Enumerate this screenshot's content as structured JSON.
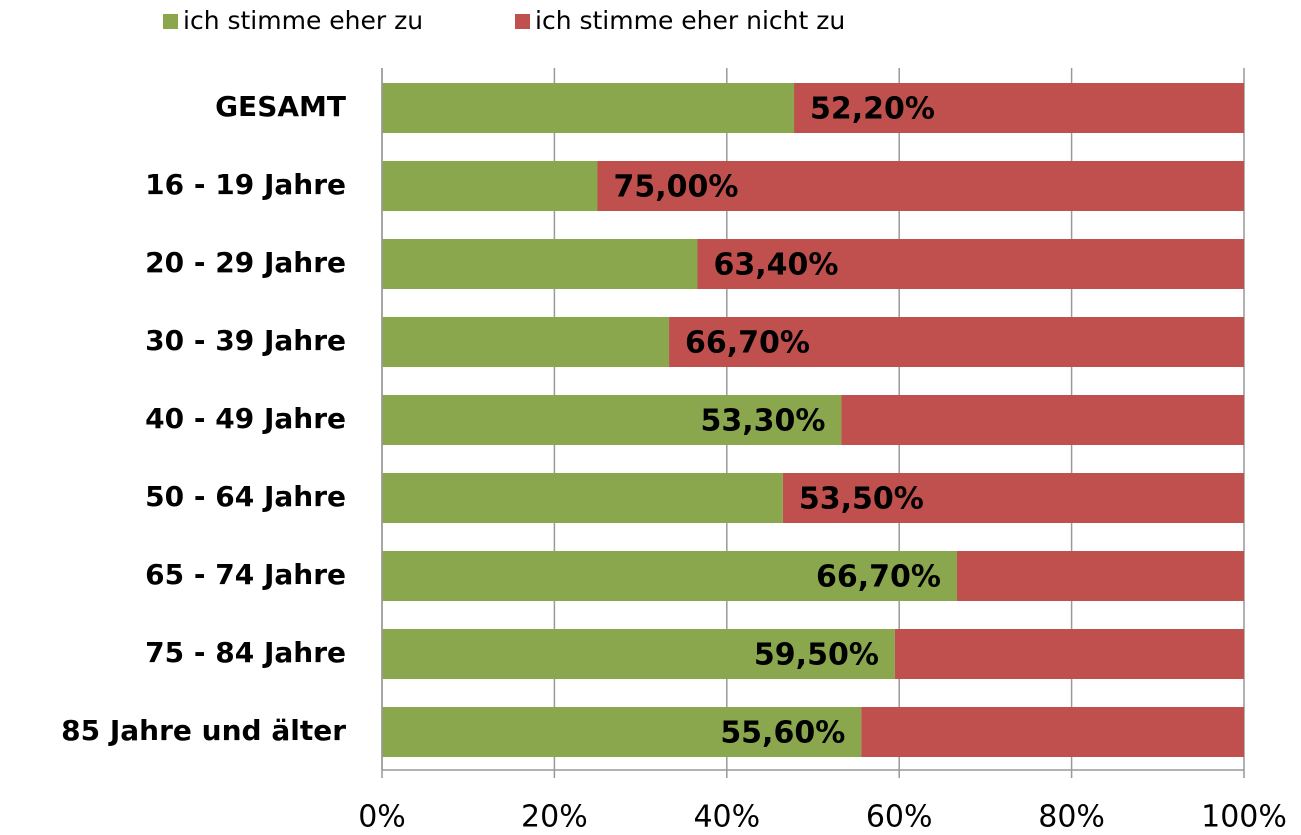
{
  "chart_data": {
    "type": "stacked-bar-horizontal",
    "categories": [
      "GESAMT",
      "16 - 19 Jahre",
      "20 - 29 Jahre",
      "30 - 39 Jahre",
      "40 - 49 Jahre",
      "50 - 64 Jahre",
      "65 - 74 Jahre",
      "75 - 84 Jahre",
      "85 Jahre und älter"
    ],
    "series": [
      {
        "name": "ich stimme eher zu",
        "color": "#8aa74e",
        "values": [
          47.8,
          25,
          36.6,
          33.3,
          53.3,
          46.5,
          66.7,
          59.5,
          55.6
        ],
        "value_labels": [
          null,
          null,
          null,
          null,
          "53,30%",
          null,
          "66,70%",
          "59,50%",
          "55,60%"
        ]
      },
      {
        "name": "ich stimme eher nicht zu",
        "color": "#c0504d",
        "values": [
          52.2,
          75,
          63.4,
          66.7,
          46.7,
          53.5,
          33.3,
          40.5,
          44.4
        ],
        "value_labels": [
          "52,20%",
          "75,00%",
          "63,40%",
          "66,70%",
          null,
          "53,50%",
          null,
          null,
          null
        ]
      }
    ],
    "xlim": [
      0,
      100
    ],
    "xticks": [
      {
        "value": 0,
        "label": "0%"
      },
      {
        "value": 20,
        "label": "20%"
      },
      {
        "value": 40,
        "label": "40%"
      },
      {
        "value": 60,
        "label": "60%"
      },
      {
        "value": 80,
        "label": "80%"
      },
      {
        "value": 100,
        "label": "100%"
      }
    ],
    "grid": true,
    "legend": "top"
  }
}
